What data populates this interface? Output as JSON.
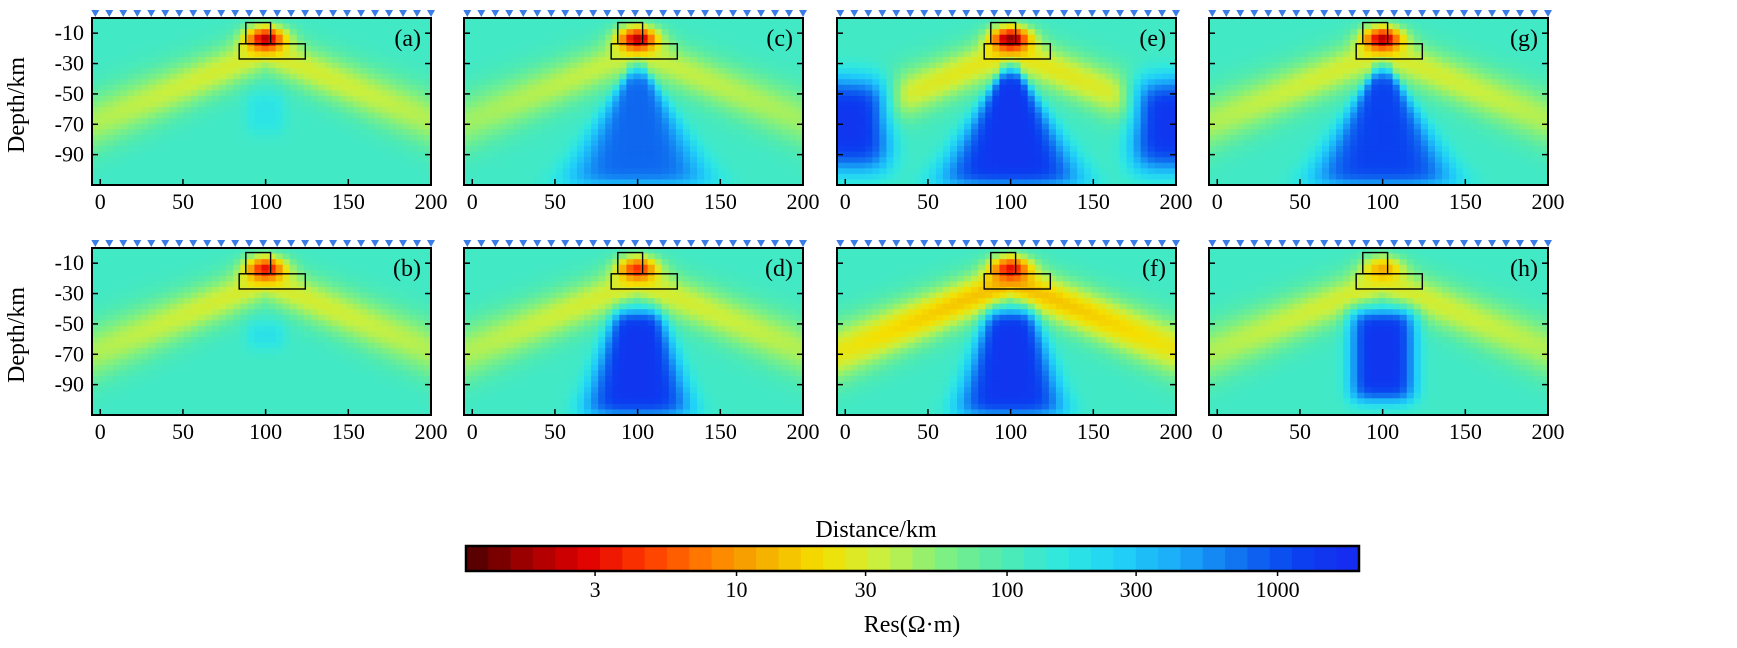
{
  "figure": {
    "xlabel": "Distance/km",
    "ylabel": "Depth/km",
    "colorbar_label": "Res(Ω·m)",
    "colorbar_ticks": [
      {
        "value": 3,
        "label": "3"
      },
      {
        "value": 10,
        "label": "10"
      },
      {
        "value": 30,
        "label": "30"
      },
      {
        "value": 100,
        "label": "100"
      },
      {
        "value": 300,
        "label": "300"
      },
      {
        "value": 1000,
        "label": "1000"
      }
    ],
    "colorbar_range": [
      1,
      2000
    ],
    "colorbar_colors": [
      "#4a0000",
      "#a00000",
      "#e00000",
      "#ff3a00",
      "#ff7a00",
      "#f5b000",
      "#f5e000",
      "#c8f040",
      "#80f080",
      "#50eab0",
      "#30e8e0",
      "#20d0f8",
      "#1aa8f8",
      "#1070f0",
      "#0a40f0",
      "#1828f0"
    ]
  },
  "chart_data": [
    {
      "type": "heatmap",
      "panel": "(a)",
      "xlim": [
        -5,
        200
      ],
      "ylim": [
        0,
        -110
      ],
      "xticks": [
        0,
        50,
        100,
        150,
        200
      ],
      "yticks": [
        -10,
        -30,
        -50,
        -70,
        -90
      ],
      "features": {
        "conductor_peak_res": 2,
        "lateral_band_res": 30,
        "deep_body_res": 180,
        "side_bodies_res": null,
        "deep_body_shape": "small",
        "max_depth": -75
      }
    },
    {
      "type": "heatmap",
      "panel": "(b)",
      "xlim": [
        -5,
        200
      ],
      "ylim": [
        0,
        -110
      ],
      "xticks": [
        0,
        50,
        100,
        150,
        200
      ],
      "yticks": [
        -10,
        -30,
        -50,
        -70,
        -90
      ],
      "features": {
        "conductor_peak_res": 3,
        "lateral_band_res": 30,
        "deep_body_res": 200,
        "side_bodies_res": null,
        "deep_body_shape": "small",
        "max_depth": -65
      }
    },
    {
      "type": "heatmap",
      "panel": "(c)",
      "xlim": [
        -5,
        200
      ],
      "ylim": [
        0,
        -110
      ],
      "xticks": [
        0,
        50,
        100,
        150,
        200
      ],
      "yticks": [
        -10,
        -30,
        -50,
        -70,
        -90
      ],
      "features": {
        "conductor_peak_res": 2,
        "lateral_band_res": 35,
        "deep_body_res": 800,
        "side_bodies_res": null,
        "deep_body_shape": "wide",
        "max_depth": -110
      }
    },
    {
      "type": "heatmap",
      "panel": "(d)",
      "xlim": [
        -5,
        200
      ],
      "ylim": [
        0,
        -110
      ],
      "xticks": [
        0,
        50,
        100,
        150,
        200
      ],
      "yticks": [
        -10,
        -30,
        -50,
        -70,
        -90
      ],
      "features": {
        "conductor_peak_res": 4,
        "lateral_band_res": 30,
        "deep_body_res": 1500,
        "side_bodies_res": null,
        "deep_body_shape": "dome",
        "max_depth": -110
      }
    },
    {
      "type": "heatmap",
      "panel": "(e)",
      "xlim": [
        -5,
        200
      ],
      "ylim": [
        0,
        -110
      ],
      "xticks": [
        0,
        50,
        100,
        150,
        200
      ],
      "yticks": [
        -10,
        -30,
        -50,
        -70,
        -90
      ],
      "features": {
        "conductor_peak_res": 1.5,
        "lateral_band_res": 25,
        "deep_body_res": 1500,
        "side_bodies_res": 1500,
        "deep_body_shape": "wide",
        "max_depth": -110
      }
    },
    {
      "type": "heatmap",
      "panel": "(f)",
      "xlim": [
        -5,
        200
      ],
      "ylim": [
        0,
        -110
      ],
      "xticks": [
        0,
        50,
        100,
        150,
        200
      ],
      "yticks": [
        -10,
        -30,
        -50,
        -70,
        -90
      ],
      "features": {
        "conductor_peak_res": 3,
        "lateral_band_res": 15,
        "deep_body_res": 1500,
        "side_bodies_res": null,
        "deep_body_shape": "dome",
        "max_depth": -110
      }
    },
    {
      "type": "heatmap",
      "panel": "(g)",
      "xlim": [
        -5,
        200
      ],
      "ylim": [
        0,
        -110
      ],
      "xticks": [
        0,
        50,
        100,
        150,
        200
      ],
      "yticks": [
        -10,
        -30,
        -50,
        -70,
        -90
      ],
      "features": {
        "conductor_peak_res": 2,
        "lateral_band_res": 30,
        "deep_body_res": 1200,
        "side_bodies_res": null,
        "deep_body_shape": "wide",
        "max_depth": -110
      }
    },
    {
      "type": "heatmap",
      "panel": "(h)",
      "xlim": [
        -5,
        200
      ],
      "ylim": [
        0,
        -110
      ],
      "xticks": [
        0,
        50,
        100,
        150,
        200
      ],
      "yticks": [
        -10,
        -30,
        -50,
        -70,
        -90
      ],
      "features": {
        "conductor_peak_res": 12,
        "lateral_band_res": 30,
        "deep_body_res": 1500,
        "side_bodies_res": null,
        "deep_body_shape": "blob",
        "max_depth": -100
      }
    }
  ],
  "overlay": {
    "upper_box": {
      "x0": 88,
      "x1": 103,
      "y0": -3,
      "y1": -17
    },
    "lower_box": {
      "x0": 84,
      "x1": 124,
      "y0": -17,
      "y1": -27
    },
    "stations": {
      "start": -3,
      "end": 200,
      "count": 25,
      "depth": -1
    }
  }
}
